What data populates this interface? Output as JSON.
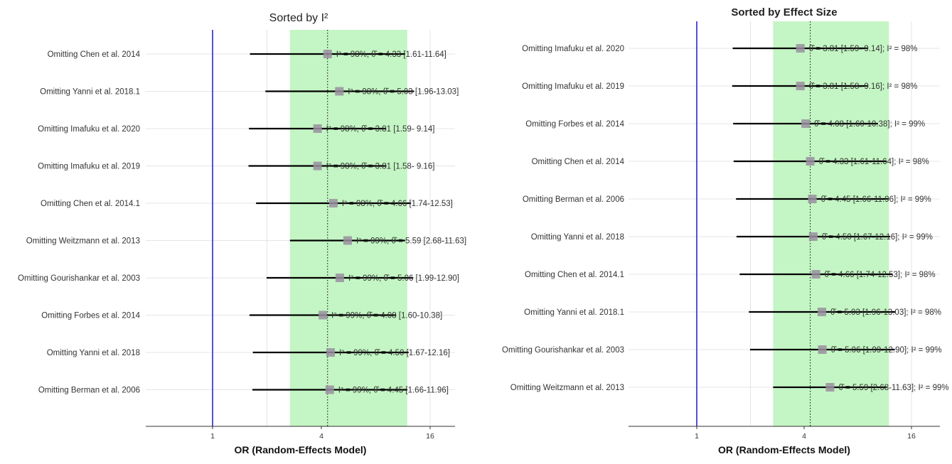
{
  "colors": {
    "band": "#c4f5c4",
    "null_line": "#1a1acd",
    "ci_line": "#000000",
    "marker": "#9a8fa0",
    "grid": "#e4e4e4",
    "text": "#333333"
  },
  "chart_data": [
    {
      "type": "forest",
      "title": "Sorted by I²",
      "xlabel": "OR (Random-Effects Model)",
      "x_scale": "log2",
      "xlim": [
        0.5,
        26
      ],
      "x_ticks": [
        1,
        4,
        16
      ],
      "x_tick_labels": [
        "1",
        "4",
        "16"
      ],
      "band": [
        2.68,
        11.96
      ],
      "pooled_reference": 4.33,
      "null_value": 1,
      "rows": [
        {
          "label": "Omitting Chen et al. 2014",
          "est": 4.33,
          "lower": 1.61,
          "upper": 11.64,
          "i2": "98%",
          "annotation": "I² = 98%, θ̂ = 4.33 [1.61-11.64]"
        },
        {
          "label": "Omitting Yanni et al. 2018.1",
          "est": 5.03,
          "lower": 1.96,
          "upper": 13.03,
          "i2": "98%",
          "annotation": "I² = 98%, θ̂ = 5.03 [1.96-13.03]"
        },
        {
          "label": "Omitting Imafuku et al. 2020",
          "est": 3.81,
          "lower": 1.59,
          "upper": 9.14,
          "i2": "98%",
          "annotation": "I² = 98%, θ̂ = 3.81 [1.59- 9.14]"
        },
        {
          "label": "Omitting Imafuku et al. 2019",
          "est": 3.81,
          "lower": 1.58,
          "upper": 9.16,
          "i2": "98%",
          "annotation": "I² = 98%, θ̂ = 3.81 [1.58- 9.16]"
        },
        {
          "label": "Omitting Chen et al. 2014.1",
          "est": 4.66,
          "lower": 1.74,
          "upper": 12.53,
          "i2": "98%",
          "annotation": "I² = 98%, θ̂ = 4.66 [1.74-12.53]"
        },
        {
          "label": "Omitting Weitzmann et al. 2013",
          "est": 5.59,
          "lower": 2.68,
          "upper": 11.63,
          "i2": "99%",
          "annotation": "I² = 99%, θ̂ = 5.59 [2.68-11.63]"
        },
        {
          "label": "Omitting Gourishankar et al. 2003",
          "est": 5.06,
          "lower": 1.99,
          "upper": 12.9,
          "i2": "99%",
          "annotation": "I² = 99%, θ̂ = 5.06 [1.99-12.90]"
        },
        {
          "label": "Omitting Forbes et al. 2014",
          "est": 4.08,
          "lower": 1.6,
          "upper": 10.38,
          "i2": "99%",
          "annotation": "I² = 99%, θ̂ = 4.08 [1.60-10.38]"
        },
        {
          "label": "Omitting Yanni et al. 2018",
          "est": 4.5,
          "lower": 1.67,
          "upper": 12.16,
          "i2": "99%",
          "annotation": "I² = 99%, θ̂ = 4.50 [1.67-12.16]"
        },
        {
          "label": "Omitting Berman et al. 2006",
          "est": 4.45,
          "lower": 1.66,
          "upper": 11.96,
          "i2": "99%",
          "annotation": "I² = 99%, θ̂ = 4.45 [1.66-11.96]"
        }
      ]
    },
    {
      "type": "forest",
      "title": "Sorted by Effect Size",
      "xlabel": "OR (Random-Effects Model)",
      "x_scale": "log2",
      "xlim": [
        0.5,
        26
      ],
      "x_ticks": [
        1,
        4,
        16
      ],
      "x_tick_labels": [
        "1",
        "4",
        "16"
      ],
      "band": [
        2.68,
        11.96
      ],
      "pooled_reference": 4.33,
      "null_value": 1,
      "rows": [
        {
          "label": "Omitting Imafuku et al. 2020",
          "est": 3.81,
          "lower": 1.59,
          "upper": 9.14,
          "i2": "98%",
          "annotation": "θ̂ = 3.81 [1.59- 9.14]; I² = 98%"
        },
        {
          "label": "Omitting Imafuku et al. 2019",
          "est": 3.81,
          "lower": 1.58,
          "upper": 9.16,
          "i2": "98%",
          "annotation": "θ̂ = 3.81 [1.58- 9.16]; I² = 98%"
        },
        {
          "label": "Omitting Forbes et al. 2014",
          "est": 4.08,
          "lower": 1.6,
          "upper": 10.38,
          "i2": "99%",
          "annotation": "θ̂ = 4.08 [1.60-10.38]; I² = 99%"
        },
        {
          "label": "Omitting Chen et al. 2014",
          "est": 4.33,
          "lower": 1.61,
          "upper": 11.64,
          "i2": "98%",
          "annotation": "θ̂ = 4.33 [1.61-11.64]; I² = 98%"
        },
        {
          "label": "Omitting Berman et al. 2006",
          "est": 4.45,
          "lower": 1.66,
          "upper": 11.96,
          "i2": "99%",
          "annotation": "θ̂ = 4.45 [1.66-11.96]; I² = 99%"
        },
        {
          "label": "Omitting Yanni et al. 2018",
          "est": 4.5,
          "lower": 1.67,
          "upper": 12.16,
          "i2": "99%",
          "annotation": "θ̂ = 4.50 [1.67-12.16]; I² = 99%"
        },
        {
          "label": "Omitting Chen et al. 2014.1",
          "est": 4.66,
          "lower": 1.74,
          "upper": 12.53,
          "i2": "98%",
          "annotation": "θ̂ = 4.66 [1.74-12.53]; I² = 98%"
        },
        {
          "label": "Omitting Yanni et al. 2018.1",
          "est": 5.03,
          "lower": 1.96,
          "upper": 13.03,
          "i2": "98%",
          "annotation": "θ̂ = 5.03 [1.96-13.03]; I² = 98%"
        },
        {
          "label": "Omitting Gourishankar et al. 2003",
          "est": 5.06,
          "lower": 1.99,
          "upper": 12.9,
          "i2": "99%",
          "annotation": "θ̂ = 5.06 [1.99-12.90]; I² = 99%"
        },
        {
          "label": "Omitting Weitzmann et al. 2013",
          "est": 5.59,
          "lower": 2.68,
          "upper": 11.63,
          "i2": "99%",
          "annotation": "θ̂ = 5.59 [2.68-11.63]; I² = 99%"
        }
      ]
    }
  ]
}
